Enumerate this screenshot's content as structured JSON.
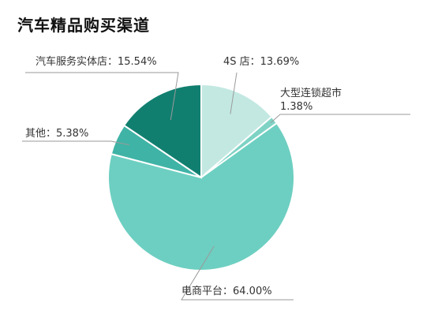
{
  "chart_data": {
    "type": "pie",
    "title": "汽车精品购买渠道",
    "slices": [
      {
        "label_lines": [
          "4S 店：13.69%"
        ],
        "value": 13.69,
        "color": "#c3e8e2"
      },
      {
        "label_lines": [
          "大型连锁超市",
          "1.38%"
        ],
        "value": 1.38,
        "color": "#7ed3c5"
      },
      {
        "label_lines": [
          "电商平台：64.00%"
        ],
        "value": 64.0,
        "color": "#6dcfc1"
      },
      {
        "label_lines": [
          "其他：5.38%"
        ],
        "value": 5.38,
        "color": "#3fb3a6"
      },
      {
        "label_lines": [
          "汽车服务实体店：15.54%"
        ],
        "value": 15.54,
        "color": "#117f70"
      }
    ],
    "start_angle": "12 o'clock",
    "direction": "clockwise",
    "slice_borders": "white",
    "leader_line_color": "#9a9a9a"
  }
}
